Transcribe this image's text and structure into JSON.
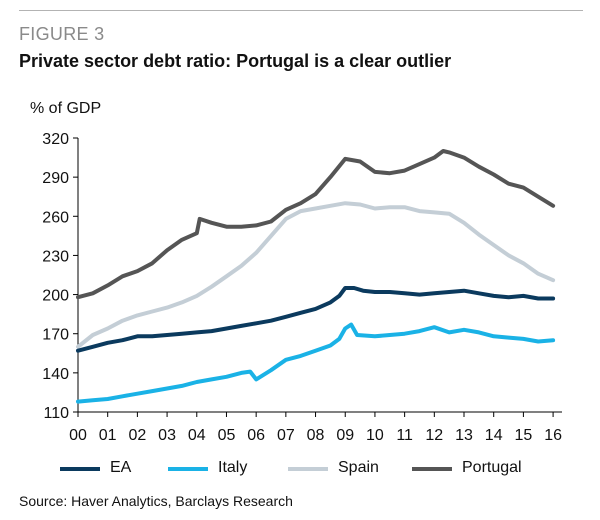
{
  "figure_label": "FIGURE 3",
  "chart_data": {
    "type": "line",
    "title": "Private sector debt ratio: Portugal is a clear outlier",
    "ylabel": "% of GDP",
    "xlabel": "",
    "ylim": [
      110,
      320
    ],
    "yticks": [
      110,
      140,
      170,
      200,
      230,
      260,
      290,
      320
    ],
    "xlim": [
      2000,
      2016.3
    ],
    "xticks": [
      {
        "value": 2000,
        "label": "00"
      },
      {
        "value": 2001,
        "label": "01"
      },
      {
        "value": 2002,
        "label": "02"
      },
      {
        "value": 2003,
        "label": "03"
      },
      {
        "value": 2004,
        "label": "04"
      },
      {
        "value": 2005,
        "label": "05"
      },
      {
        "value": 2006,
        "label": "06"
      },
      {
        "value": 2007,
        "label": "07"
      },
      {
        "value": 2008,
        "label": "08"
      },
      {
        "value": 2009,
        "label": "09"
      },
      {
        "value": 2010,
        "label": "10"
      },
      {
        "value": 2011,
        "label": "11"
      },
      {
        "value": 2012,
        "label": "12"
      },
      {
        "value": 2013,
        "label": "13"
      },
      {
        "value": 2014,
        "label": "14"
      },
      {
        "value": 2015,
        "label": "15"
      },
      {
        "value": 2016,
        "label": "16"
      }
    ],
    "grid": false,
    "legend_position": "bottom",
    "series": [
      {
        "name": "EA",
        "color": "#0b3a5e",
        "points": [
          [
            2000,
            157
          ],
          [
            2000.5,
            160
          ],
          [
            2001,
            163
          ],
          [
            2001.5,
            165
          ],
          [
            2002,
            168
          ],
          [
            2002.5,
            168
          ],
          [
            2003,
            169
          ],
          [
            2003.5,
            170
          ],
          [
            2004,
            171
          ],
          [
            2004.5,
            172
          ],
          [
            2005,
            174
          ],
          [
            2005.5,
            176
          ],
          [
            2006,
            178
          ],
          [
            2006.5,
            180
          ],
          [
            2007,
            183
          ],
          [
            2007.5,
            186
          ],
          [
            2008,
            189
          ],
          [
            2008.5,
            194
          ],
          [
            2008.8,
            199
          ],
          [
            2009,
            205
          ],
          [
            2009.3,
            205
          ],
          [
            2009.6,
            203
          ],
          [
            2010,
            202
          ],
          [
            2010.5,
            202
          ],
          [
            2011,
            201
          ],
          [
            2011.5,
            200
          ],
          [
            2012,
            201
          ],
          [
            2012.5,
            202
          ],
          [
            2013,
            203
          ],
          [
            2013.5,
            201
          ],
          [
            2014,
            199
          ],
          [
            2014.5,
            198
          ],
          [
            2015,
            199
          ],
          [
            2015.5,
            197
          ],
          [
            2016,
            197
          ]
        ]
      },
      {
        "name": "Italy",
        "color": "#1ab2e6",
        "points": [
          [
            2000,
            118
          ],
          [
            2000.5,
            119
          ],
          [
            2001,
            120
          ],
          [
            2001.5,
            122
          ],
          [
            2002,
            124
          ],
          [
            2002.5,
            126
          ],
          [
            2003,
            128
          ],
          [
            2003.5,
            130
          ],
          [
            2004,
            133
          ],
          [
            2004.5,
            135
          ],
          [
            2005,
            137
          ],
          [
            2005.5,
            140
          ],
          [
            2005.8,
            141
          ],
          [
            2006,
            135
          ],
          [
            2006.5,
            142
          ],
          [
            2007,
            150
          ],
          [
            2007.5,
            153
          ],
          [
            2008,
            157
          ],
          [
            2008.5,
            161
          ],
          [
            2008.8,
            166
          ],
          [
            2009,
            174
          ],
          [
            2009.2,
            177
          ],
          [
            2009.4,
            169
          ],
          [
            2010,
            168
          ],
          [
            2010.5,
            169
          ],
          [
            2011,
            170
          ],
          [
            2011.5,
            172
          ],
          [
            2012,
            175
          ],
          [
            2012.5,
            171
          ],
          [
            2013,
            173
          ],
          [
            2013.5,
            171
          ],
          [
            2014,
            168
          ],
          [
            2014.5,
            167
          ],
          [
            2015,
            166
          ],
          [
            2015.5,
            164
          ],
          [
            2016,
            165
          ]
        ]
      },
      {
        "name": "Spain",
        "color": "#c4ced6",
        "points": [
          [
            2000,
            160
          ],
          [
            2000.5,
            169
          ],
          [
            2001,
            174
          ],
          [
            2001.5,
            180
          ],
          [
            2002,
            184
          ],
          [
            2002.5,
            187
          ],
          [
            2003,
            190
          ],
          [
            2003.5,
            194
          ],
          [
            2004,
            199
          ],
          [
            2004.5,
            206
          ],
          [
            2005,
            214
          ],
          [
            2005.5,
            222
          ],
          [
            2006,
            232
          ],
          [
            2006.5,
            245
          ],
          [
            2007,
            258
          ],
          [
            2007.5,
            264
          ],
          [
            2008,
            266
          ],
          [
            2008.5,
            268
          ],
          [
            2009,
            270
          ],
          [
            2009.5,
            269
          ],
          [
            2010,
            266
          ],
          [
            2010.5,
            267
          ],
          [
            2011,
            267
          ],
          [
            2011.5,
            264
          ],
          [
            2012,
            263
          ],
          [
            2012.5,
            262
          ],
          [
            2013,
            255
          ],
          [
            2013.5,
            246
          ],
          [
            2014,
            238
          ],
          [
            2014.5,
            230
          ],
          [
            2015,
            224
          ],
          [
            2015.5,
            216
          ],
          [
            2016,
            211
          ]
        ]
      },
      {
        "name": "Portugal",
        "color": "#555555",
        "points": [
          [
            2000,
            198
          ],
          [
            2000.5,
            201
          ],
          [
            2001,
            207
          ],
          [
            2001.5,
            214
          ],
          [
            2002,
            218
          ],
          [
            2002.5,
            224
          ],
          [
            2003,
            234
          ],
          [
            2003.5,
            242
          ],
          [
            2004,
            247
          ],
          [
            2004.1,
            258
          ],
          [
            2004.5,
            255
          ],
          [
            2005,
            252
          ],
          [
            2005.5,
            252
          ],
          [
            2006,
            253
          ],
          [
            2006.5,
            256
          ],
          [
            2007,
            265
          ],
          [
            2007.5,
            270
          ],
          [
            2008,
            277
          ],
          [
            2008.5,
            290
          ],
          [
            2009,
            304
          ],
          [
            2009.5,
            302
          ],
          [
            2010,
            294
          ],
          [
            2010.5,
            293
          ],
          [
            2011,
            295
          ],
          [
            2011.5,
            300
          ],
          [
            2012,
            305
          ],
          [
            2012.3,
            310
          ],
          [
            2012.5,
            309
          ],
          [
            2013,
            305
          ],
          [
            2013.5,
            298
          ],
          [
            2014,
            292
          ],
          [
            2014.5,
            285
          ],
          [
            2015,
            282
          ],
          [
            2015.5,
            275
          ],
          [
            2016,
            268
          ]
        ]
      }
    ]
  },
  "source": "Source: Haver Analytics, Barclays Research"
}
